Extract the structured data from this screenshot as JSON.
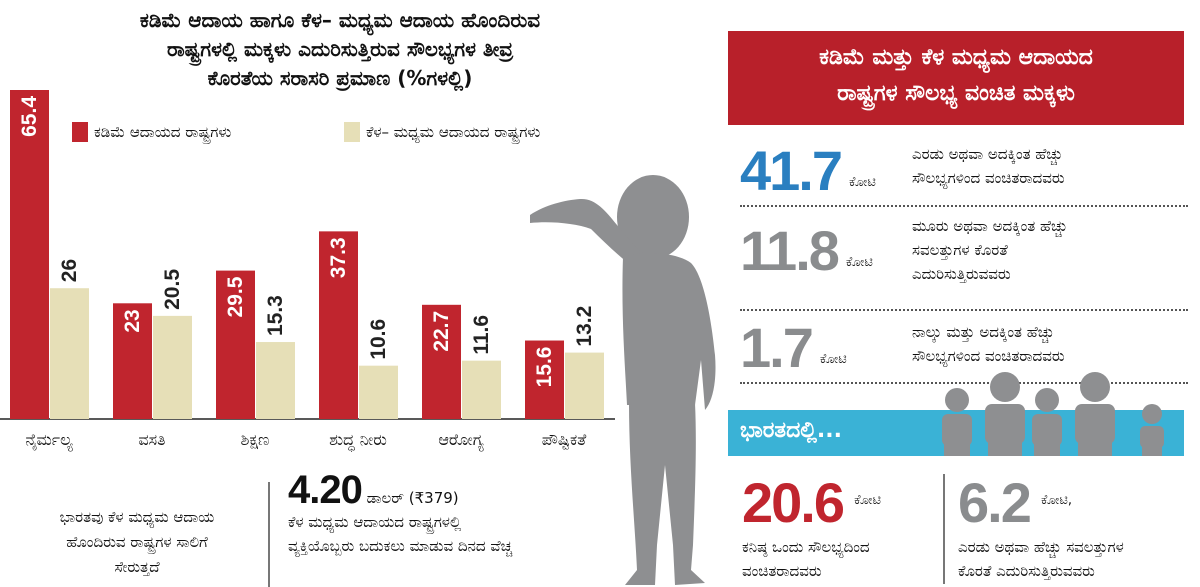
{
  "left_title": {
    "line1": "ಕಡಿಮೆ ಆದಾಯ ಹಾಗೂ ಕೆಳ– ಮಧ್ಯಮ ಆದಾಯ ಹೊಂದಿರುವ",
    "line2": "ರಾಷ್ಟ್ರಗಳಲ್ಲಿ ಮಕ್ಕಳು ಎದುರಿಸುತ್ತಿರುವ ಸೌಲಭ್ಯಗಳ ತೀವ್ರ",
    "line3": "ಕೊರತೆಯ ಸರಾಸರಿ ಪ್ರಮಾಣ (%ಗಳಲ್ಲಿ)"
  },
  "legend": {
    "low": "ಕಡಿಮೆ ಆದಾಯದ ರಾಷ್ಟ್ರಗಳು",
    "lowmid": "ಕೆಳ– ಮಧ್ಯಮ ಆದಾಯದ ರಾಷ್ಟ್ರಗಳು"
  },
  "colors": {
    "red": "#c0252e",
    "beige": "#e6dfb7",
    "blue": "#2a7fc0",
    "gray": "#8a8c8e",
    "cyan": "#3ab2d6"
  },
  "chart_data": {
    "type": "bar",
    "categories": [
      "ನೈರ್ಮಲ್ಯ",
      "ವಸತಿ",
      "ಶಿಕ್ಷಣ",
      "ಶುದ್ಧ ನೀರು",
      "ಆರೋಗ್ಯ",
      "ಪೌಷ್ಟಿಕತೆ"
    ],
    "series": [
      {
        "name": "ಕಡಿಮೆ ಆದಾಯದ ರಾಷ್ಟ್ರಗಳು",
        "values": [
          65.4,
          23,
          29.5,
          37.3,
          22.7,
          15.6
        ],
        "labels": [
          "65.4",
          "23",
          "29.5",
          "37.3",
          "22.7",
          "15.6"
        ]
      },
      {
        "name": "ಕೆಳ– ಮಧ್ಯಮ ಆದಾಯದ ರಾಷ್ಟ್ರಗಳು",
        "values": [
          26,
          20.5,
          15.3,
          10.6,
          11.6,
          13.2
        ],
        "labels": [
          "26",
          "20.5",
          "15.3",
          "10.6",
          "11.6",
          "13.2"
        ]
      }
    ],
    "title": "",
    "ylim": [
      0,
      65.4
    ],
    "grid": false
  },
  "bottom_left": {
    "line1": "ಭಾರತವು ಕೆಳ ಮಧ್ಯಮ ಆದಾಯ",
    "line2": "ಹೊಂದಿರುವ ರಾಷ್ಟ್ರಗಳ ಸಾಲಿಗೆ",
    "line3": "ಸೇರುತ್ತದೆ"
  },
  "usd": {
    "value": "4.20",
    "unit": "ಡಾಲರ್ (₹379)",
    "line1": "ಕೆಳ ಮಧ್ಯಮ ಆದಾಯದ ರಾಷ್ಟ್ರಗಳಲ್ಲಿ",
    "line2": "ವ್ಯಕ್ತಿಯೊಬ್ಬರು ಬದುಕಲು ಮಾಡುವ ದಿನದ ವೆಚ್ಚ"
  },
  "right_header": {
    "line1": "ಕಡಿಮೆ ಮತ್ತು ಕೆಳ ಮಧ್ಯಮ ಆದಾಯದ",
    "line2": "ರಾಷ್ಟ್ರಗಳ ಸೌಲಭ್ಯ ವಂಚಿತ ಮಕ್ಕಳು"
  },
  "stats": [
    {
      "num": "41.7",
      "unit": "ಕೋಟಿ",
      "l1": "ಎರಡು ಅಥವಾ ಅದಕ್ಕಿಂತ ಹೆಚ್ಚು",
      "l2": "ಸೌಲಭ್ಯಗಳಿಂದ ವಂಚಿತರಾದವರು",
      "l3": ""
    },
    {
      "num": "11.8",
      "unit": "ಕೋಟಿ",
      "l1": "ಮೂರು ಅಥವಾ ಅದಕ್ಕಿಂತ ಹೆಚ್ಚು",
      "l2": "ಸವಲತ್ತುಗಳ ಕೊರತೆ",
      "l3": "ಎದುರಿಸುತ್ತಿರುವವರು"
    },
    {
      "num": "1.7",
      "unit": "ಕೋಟಿ",
      "l1": "ನಾಲ್ಕು ಮತ್ತು ಅದಕ್ಕಿಂತ ಹೆಚ್ಚು",
      "l2": "ಸೌಲಭ್ಯಗಳಿಂದ ವಂಚಿತರಾದವರು",
      "l3": ""
    }
  ],
  "india": {
    "label": "ಭಾರತದಲ್ಲಿ...",
    "a_num": "20.6",
    "a_unit": "ಕೋಟಿ",
    "a_l1": "ಕನಿಷ್ಠ ಒಂದು ಸೌಲಭ್ಯದಿಂದ",
    "a_l2": "ವಂಚಿತರಾದವರು",
    "b_num": "6.2",
    "b_unit": "ಕೋಟಿ,",
    "b_l1": "ಎರಡು ಅಥವಾ ಹೆಚ್ಚು ಸವಲತ್ತುಗಳ",
    "b_l2": "ಕೊರತೆ ಎದುರಿಸುತ್ತಿರುವವರು"
  }
}
